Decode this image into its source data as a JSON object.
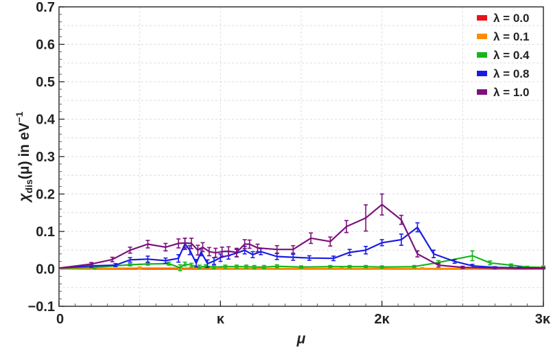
{
  "chart_data": {
    "type": "line",
    "title": "",
    "xlabel": "μ",
    "ylabel_parts": {
      "main": "χ",
      "sub": "dis",
      "mid": "(μ) in eV",
      "sup": "−1"
    },
    "xlim": [
      0,
      3
    ],
    "ylim": [
      -0.1,
      0.7
    ],
    "x_ticks": [
      {
        "value": 0,
        "label": "0"
      },
      {
        "value": 1,
        "label": "κ"
      },
      {
        "value": 2,
        "label": "2κ"
      },
      {
        "value": 3,
        "label": "3κ"
      }
    ],
    "y_ticks": [
      {
        "value": -0.1,
        "label": "−0.1"
      },
      {
        "value": 0.0,
        "label": "0.0"
      },
      {
        "value": 0.1,
        "label": "0.1"
      },
      {
        "value": 0.2,
        "label": "0.2"
      },
      {
        "value": 0.3,
        "label": "0.3"
      },
      {
        "value": 0.4,
        "label": "0.4"
      },
      {
        "value": 0.5,
        "label": "0.5"
      },
      {
        "value": 0.6,
        "label": "0.6"
      },
      {
        "value": 0.7,
        "label": "0.7"
      }
    ],
    "grid": true,
    "legend_position": "top-right",
    "series": [
      {
        "name": "λ = 0.0",
        "color": "#e8141c",
        "points": [
          [
            0.0,
            0.0,
            0
          ],
          [
            0.2,
            0.0,
            0
          ],
          [
            0.5,
            0.0,
            0
          ],
          [
            0.75,
            0.0,
            0
          ],
          [
            1.0,
            0.0,
            0
          ],
          [
            1.25,
            0.0,
            0
          ],
          [
            1.5,
            0.0,
            0
          ],
          [
            1.75,
            0.0,
            0
          ],
          [
            2.0,
            0.0,
            0
          ],
          [
            2.25,
            0.0,
            0
          ],
          [
            2.5,
            0.0,
            0
          ],
          [
            2.75,
            0.0,
            0
          ],
          [
            3.0,
            0.0,
            0
          ]
        ]
      },
      {
        "name": "λ = 0.1",
        "color": "#ff8c00",
        "points": [
          [
            0.0,
            0.0,
            0
          ],
          [
            0.2,
            0.001,
            0.002
          ],
          [
            0.5,
            0.002,
            0.003
          ],
          [
            0.75,
            0.002,
            0.003
          ],
          [
            1.0,
            0.001,
            0.002
          ],
          [
            1.25,
            0.001,
            0.002
          ],
          [
            1.5,
            0.001,
            0.002
          ],
          [
            1.75,
            0.001,
            0.002
          ],
          [
            2.0,
            0.001,
            0.002
          ],
          [
            2.25,
            0.001,
            0.002
          ],
          [
            2.5,
            0.001,
            0.002
          ],
          [
            2.75,
            0.001,
            0.002
          ],
          [
            3.0,
            0.004,
            0.004
          ]
        ]
      },
      {
        "name": "λ = 0.4",
        "color": "#16b51a",
        "points": [
          [
            0.0,
            0.002,
            0
          ],
          [
            0.22,
            0.004,
            0.003
          ],
          [
            0.44,
            0.011,
            0.003
          ],
          [
            0.55,
            0.013,
            0.003
          ],
          [
            0.68,
            0.014,
            0.004
          ],
          [
            0.75,
            0.003,
            0.008
          ],
          [
            0.78,
            0.013,
            0.005
          ],
          [
            0.82,
            0.01,
            0.005
          ],
          [
            0.87,
            0.005,
            0.005
          ],
          [
            0.91,
            0.007,
            0.004
          ],
          [
            0.96,
            0.005,
            0.004
          ],
          [
            1.03,
            0.006,
            0.004
          ],
          [
            1.1,
            0.006,
            0.004
          ],
          [
            1.16,
            0.006,
            0.004
          ],
          [
            1.21,
            0.005,
            0.004
          ],
          [
            1.27,
            0.005,
            0.004
          ],
          [
            1.35,
            0.007,
            0.004
          ],
          [
            1.5,
            0.005,
            0.003
          ],
          [
            1.68,
            0.006,
            0.003
          ],
          [
            1.8,
            0.006,
            0.003
          ],
          [
            1.9,
            0.006,
            0.003
          ],
          [
            2.0,
            0.005,
            0.003
          ],
          [
            2.2,
            0.006,
            0.003
          ],
          [
            2.35,
            0.017,
            0.005
          ],
          [
            2.56,
            0.035,
            0.013
          ],
          [
            2.67,
            0.016,
            0.005
          ],
          [
            2.8,
            0.01,
            0.003
          ],
          [
            2.9,
            0.005,
            0.002
          ],
          [
            3.0,
            0.004,
            0.002
          ]
        ]
      },
      {
        "name": "λ = 0.8",
        "color": "#1a1ae6",
        "points": [
          [
            0.0,
            0.002,
            0
          ],
          [
            0.2,
            0.008,
            0.004
          ],
          [
            0.35,
            0.01,
            0.004
          ],
          [
            0.44,
            0.024,
            0.006
          ],
          [
            0.55,
            0.026,
            0.008
          ],
          [
            0.66,
            0.022,
            0.007
          ],
          [
            0.74,
            0.028,
            0.01
          ],
          [
            0.78,
            0.067,
            0.015
          ],
          [
            0.81,
            0.05,
            0.012
          ],
          [
            0.85,
            0.015,
            0.01
          ],
          [
            0.88,
            0.045,
            0.01
          ],
          [
            0.92,
            0.014,
            0.01
          ],
          [
            0.96,
            0.021,
            0.009
          ],
          [
            1.0,
            0.03,
            0.01
          ],
          [
            1.05,
            0.036,
            0.01
          ],
          [
            1.1,
            0.042,
            0.01
          ],
          [
            1.15,
            0.05,
            0.01
          ],
          [
            1.2,
            0.038,
            0.008
          ],
          [
            1.25,
            0.046,
            0.008
          ],
          [
            1.35,
            0.033,
            0.008
          ],
          [
            1.45,
            0.031,
            0.008
          ],
          [
            1.55,
            0.029,
            0.006
          ],
          [
            1.7,
            0.028,
            0.006
          ],
          [
            1.8,
            0.044,
            0.008
          ],
          [
            1.9,
            0.05,
            0.01
          ],
          [
            2.0,
            0.07,
            0.008
          ],
          [
            2.12,
            0.078,
            0.015
          ],
          [
            2.22,
            0.111,
            0.012
          ],
          [
            2.32,
            0.04,
            0.01
          ],
          [
            2.45,
            0.02,
            0.005
          ],
          [
            2.56,
            0.008,
            0.004
          ],
          [
            2.7,
            0.004,
            0.002
          ],
          [
            2.85,
            0.003,
            0.002
          ],
          [
            3.0,
            0.002,
            0.002
          ]
        ]
      },
      {
        "name": "λ = 1.0",
        "color": "#7b117b",
        "points": [
          [
            0.0,
            0.002,
            0
          ],
          [
            0.2,
            0.013,
            0.004
          ],
          [
            0.33,
            0.025,
            0.006
          ],
          [
            0.44,
            0.05,
            0.008
          ],
          [
            0.55,
            0.066,
            0.01
          ],
          [
            0.66,
            0.058,
            0.01
          ],
          [
            0.74,
            0.068,
            0.012
          ],
          [
            0.78,
            0.069,
            0.013
          ],
          [
            0.82,
            0.068,
            0.014
          ],
          [
            0.86,
            0.05,
            0.013
          ],
          [
            0.89,
            0.058,
            0.012
          ],
          [
            0.93,
            0.046,
            0.011
          ],
          [
            0.97,
            0.043,
            0.012
          ],
          [
            1.01,
            0.046,
            0.012
          ],
          [
            1.05,
            0.047,
            0.012
          ],
          [
            1.1,
            0.044,
            0.011
          ],
          [
            1.15,
            0.066,
            0.012
          ],
          [
            1.18,
            0.066,
            0.011
          ],
          [
            1.23,
            0.056,
            0.01
          ],
          [
            1.35,
            0.052,
            0.01
          ],
          [
            1.45,
            0.052,
            0.01
          ],
          [
            1.56,
            0.082,
            0.014
          ],
          [
            1.68,
            0.073,
            0.012
          ],
          [
            1.78,
            0.113,
            0.016
          ],
          [
            1.9,
            0.136,
            0.035
          ],
          [
            2.0,
            0.172,
            0.028
          ],
          [
            2.12,
            0.131,
            0.012
          ],
          [
            2.22,
            0.04,
            0.008
          ],
          [
            2.35,
            0.01,
            0.005
          ],
          [
            2.5,
            0.004,
            0.003
          ],
          [
            2.7,
            0.002,
            0.002
          ],
          [
            3.0,
            0.002,
            0.002
          ]
        ]
      }
    ]
  }
}
